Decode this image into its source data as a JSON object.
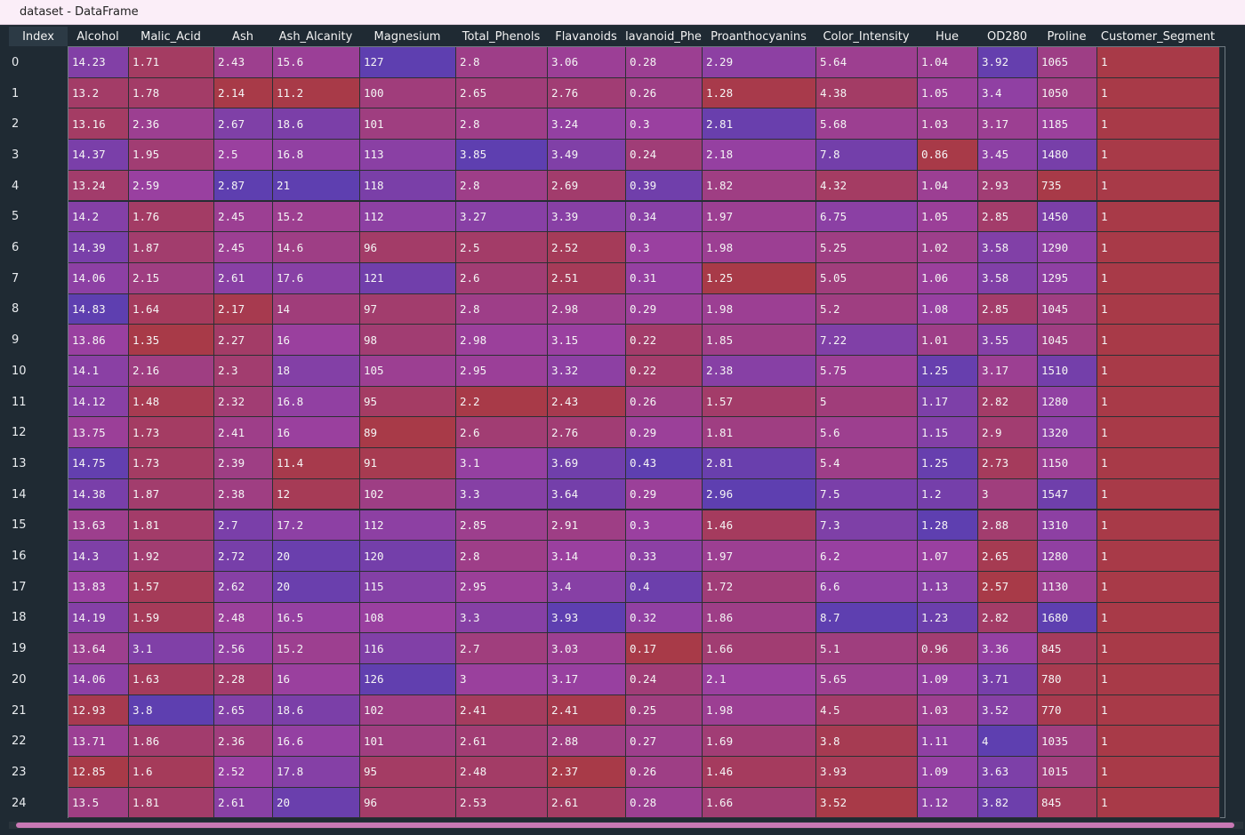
{
  "window": {
    "title": "dataset - DataFrame"
  },
  "columns": [
    "Alcohol",
    "Malic_Acid",
    "Ash",
    "Ash_Alcanity",
    "Magnesium",
    "Total_Phenols",
    "Flavanoids",
    "lavanoid_Phe",
    "Proanthocyanins",
    "Color_Intensity",
    "Hue",
    "OD280",
    "Proline",
    "Customer_Segment"
  ],
  "index_header": "Index",
  "index": [
    "0",
    "1",
    "2",
    "3",
    "4",
    "5",
    "6",
    "7",
    "8",
    "9",
    "10",
    "11",
    "12",
    "13",
    "14",
    "15",
    "16",
    "17",
    "18",
    "19",
    "20",
    "21",
    "22",
    "23",
    "24"
  ],
  "rows": [
    [
      "14.23",
      "1.71",
      "2.43",
      "15.6",
      "127",
      "2.8",
      "3.06",
      "0.28",
      "2.29",
      "5.64",
      "1.04",
      "3.92",
      "1065",
      "1"
    ],
    [
      "13.2",
      "1.78",
      "2.14",
      "11.2",
      "100",
      "2.65",
      "2.76",
      "0.26",
      "1.28",
      "4.38",
      "1.05",
      "3.4",
      "1050",
      "1"
    ],
    [
      "13.16",
      "2.36",
      "2.67",
      "18.6",
      "101",
      "2.8",
      "3.24",
      "0.3",
      "2.81",
      "5.68",
      "1.03",
      "3.17",
      "1185",
      "1"
    ],
    [
      "14.37",
      "1.95",
      "2.5",
      "16.8",
      "113",
      "3.85",
      "3.49",
      "0.24",
      "2.18",
      "7.8",
      "0.86",
      "3.45",
      "1480",
      "1"
    ],
    [
      "13.24",
      "2.59",
      "2.87",
      "21",
      "118",
      "2.8",
      "2.69",
      "0.39",
      "1.82",
      "4.32",
      "1.04",
      "2.93",
      "735",
      "1"
    ],
    [
      "14.2",
      "1.76",
      "2.45",
      "15.2",
      "112",
      "3.27",
      "3.39",
      "0.34",
      "1.97",
      "6.75",
      "1.05",
      "2.85",
      "1450",
      "1"
    ],
    [
      "14.39",
      "1.87",
      "2.45",
      "14.6",
      "96",
      "2.5",
      "2.52",
      "0.3",
      "1.98",
      "5.25",
      "1.02",
      "3.58",
      "1290",
      "1"
    ],
    [
      "14.06",
      "2.15",
      "2.61",
      "17.6",
      "121",
      "2.6",
      "2.51",
      "0.31",
      "1.25",
      "5.05",
      "1.06",
      "3.58",
      "1295",
      "1"
    ],
    [
      "14.83",
      "1.64",
      "2.17",
      "14",
      "97",
      "2.8",
      "2.98",
      "0.29",
      "1.98",
      "5.2",
      "1.08",
      "2.85",
      "1045",
      "1"
    ],
    [
      "13.86",
      "1.35",
      "2.27",
      "16",
      "98",
      "2.98",
      "3.15",
      "0.22",
      "1.85",
      "7.22",
      "1.01",
      "3.55",
      "1045",
      "1"
    ],
    [
      "14.1",
      "2.16",
      "2.3",
      "18",
      "105",
      "2.95",
      "3.32",
      "0.22",
      "2.38",
      "5.75",
      "1.25",
      "3.17",
      "1510",
      "1"
    ],
    [
      "14.12",
      "1.48",
      "2.32",
      "16.8",
      "95",
      "2.2",
      "2.43",
      "0.26",
      "1.57",
      "5",
      "1.17",
      "2.82",
      "1280",
      "1"
    ],
    [
      "13.75",
      "1.73",
      "2.41",
      "16",
      "89",
      "2.6",
      "2.76",
      "0.29",
      "1.81",
      "5.6",
      "1.15",
      "2.9",
      "1320",
      "1"
    ],
    [
      "14.75",
      "1.73",
      "2.39",
      "11.4",
      "91",
      "3.1",
      "3.69",
      "0.43",
      "2.81",
      "5.4",
      "1.25",
      "2.73",
      "1150",
      "1"
    ],
    [
      "14.38",
      "1.87",
      "2.38",
      "12",
      "102",
      "3.3",
      "3.64",
      "0.29",
      "2.96",
      "7.5",
      "1.2",
      "3",
      "1547",
      "1"
    ],
    [
      "13.63",
      "1.81",
      "2.7",
      "17.2",
      "112",
      "2.85",
      "2.91",
      "0.3",
      "1.46",
      "7.3",
      "1.28",
      "2.88",
      "1310",
      "1"
    ],
    [
      "14.3",
      "1.92",
      "2.72",
      "20",
      "120",
      "2.8",
      "3.14",
      "0.33",
      "1.97",
      "6.2",
      "1.07",
      "2.65",
      "1280",
      "1"
    ],
    [
      "13.83",
      "1.57",
      "2.62",
      "20",
      "115",
      "2.95",
      "3.4",
      "0.4",
      "1.72",
      "6.6",
      "1.13",
      "2.57",
      "1130",
      "1"
    ],
    [
      "14.19",
      "1.59",
      "2.48",
      "16.5",
      "108",
      "3.3",
      "3.93",
      "0.32",
      "1.86",
      "8.7",
      "1.23",
      "2.82",
      "1680",
      "1"
    ],
    [
      "13.64",
      "3.1",
      "2.56",
      "15.2",
      "116",
      "2.7",
      "3.03",
      "0.17",
      "1.66",
      "5.1",
      "0.96",
      "3.36",
      "845",
      "1"
    ],
    [
      "14.06",
      "1.63",
      "2.28",
      "16",
      "126",
      "3",
      "3.17",
      "0.24",
      "2.1",
      "5.65",
      "1.09",
      "3.71",
      "780",
      "1"
    ],
    [
      "12.93",
      "3.8",
      "2.65",
      "18.6",
      "102",
      "2.41",
      "2.41",
      "0.25",
      "1.98",
      "4.5",
      "1.03",
      "3.52",
      "770",
      "1"
    ],
    [
      "13.71",
      "1.86",
      "2.36",
      "16.6",
      "101",
      "2.61",
      "2.88",
      "0.27",
      "1.69",
      "3.8",
      "1.11",
      "4",
      "1035",
      "1"
    ],
    [
      "12.85",
      "1.6",
      "2.52",
      "17.8",
      "95",
      "2.48",
      "2.37",
      "0.26",
      "1.46",
      "3.93",
      "1.09",
      "3.63",
      "1015",
      "1"
    ],
    [
      "13.5",
      "1.81",
      "2.61",
      "20",
      "96",
      "2.53",
      "2.61",
      "0.28",
      "1.66",
      "3.52",
      "1.12",
      "3.82",
      "845",
      "1"
    ]
  ],
  "colors": {
    "background": "#1f2a33",
    "titlebar": "#fbeef8",
    "scrollbar_thumb": "#c978b5",
    "heat_low": "#a83a48",
    "heat_mid": "#9a40a0",
    "heat_high": "#5e3fb0"
  }
}
